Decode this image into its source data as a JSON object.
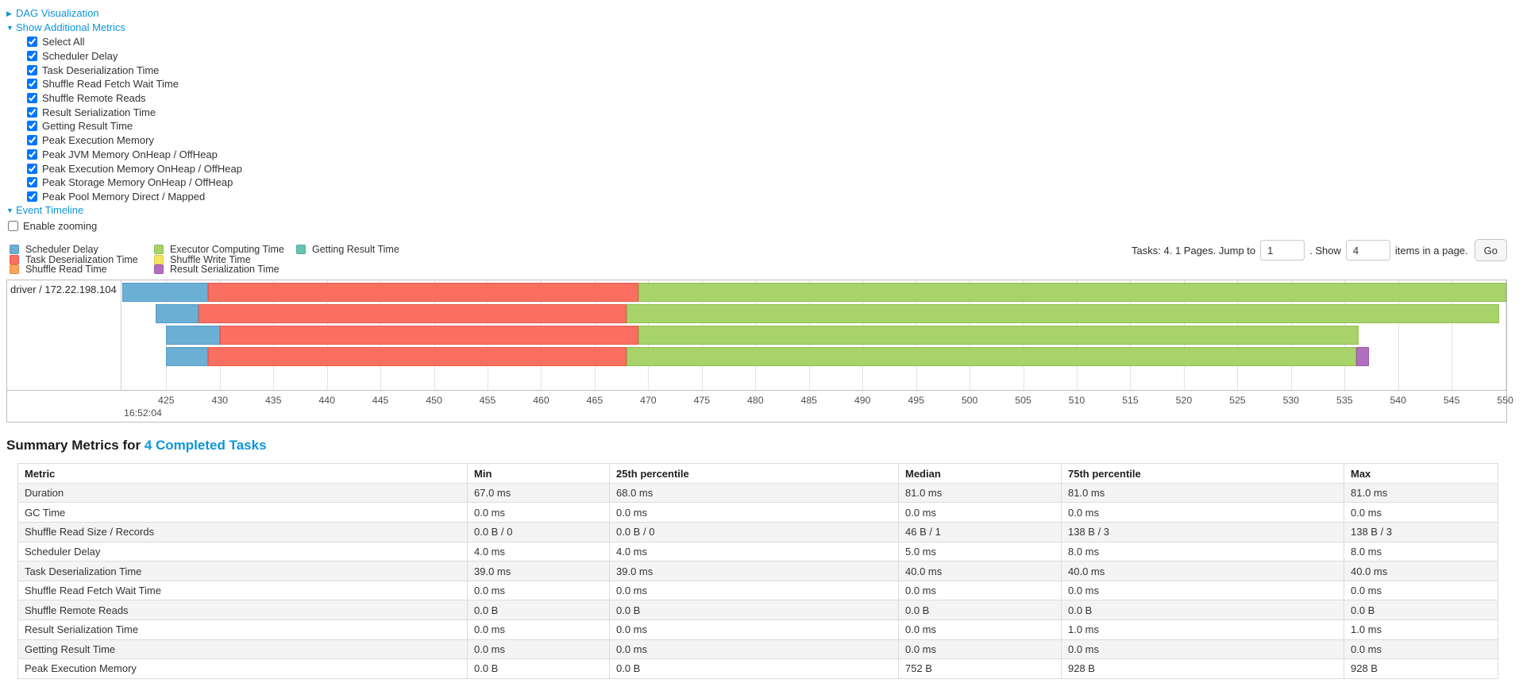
{
  "colors": {
    "link": "#0e95da",
    "scheduler_delay": {
      "fill": "#6CAFD4",
      "border": "#559BC4"
    },
    "task_deserialization": {
      "fill": "#FB6F61",
      "border": "#E85A4E"
    },
    "shuffle_read": {
      "fill": "#F9A65C",
      "border": "#E08C42"
    },
    "executor_computing": {
      "fill": "#A7D36A",
      "border": "#8FBE50"
    },
    "shuffle_write": {
      "fill": "#F3E55F",
      "border": "#D9CB48"
    },
    "result_serialization": {
      "fill": "#B26FC0",
      "border": "#9858A8"
    },
    "getting_result": {
      "fill": "#67C4B2",
      "border": "#4FAD9A"
    }
  },
  "toggles": {
    "dag": {
      "label": "DAG Visualization",
      "arrow": "▶"
    },
    "metrics": {
      "label": "Show Additional Metrics",
      "arrow": "▼"
    },
    "timeline": {
      "label": "Event Timeline",
      "arrow": "▼"
    }
  },
  "metrics_panel": {
    "items": [
      {
        "label": "Select All",
        "checked": true
      },
      {
        "label": "Scheduler Delay",
        "checked": true
      },
      {
        "label": "Task Deserialization Time",
        "checked": true
      },
      {
        "label": "Shuffle Read Fetch Wait Time",
        "checked": true
      },
      {
        "label": "Shuffle Remote Reads",
        "checked": true
      },
      {
        "label": "Result Serialization Time",
        "checked": true
      },
      {
        "label": "Getting Result Time",
        "checked": true
      },
      {
        "label": "Peak Execution Memory",
        "checked": true
      },
      {
        "label": "Peak JVM Memory OnHeap / OffHeap",
        "checked": true
      },
      {
        "label": "Peak Execution Memory OnHeap / OffHeap",
        "checked": true
      },
      {
        "label": "Peak Storage Memory OnHeap / OffHeap",
        "checked": true
      },
      {
        "label": "Peak Pool Memory Direct / Mapped",
        "checked": true
      }
    ]
  },
  "enable_zooming": {
    "label": "Enable zooming",
    "checked": false
  },
  "legend": {
    "columns": [
      [
        {
          "label": "Scheduler Delay",
          "color_key": "scheduler_delay"
        },
        {
          "label": "Task Deserialization Time",
          "color_key": "task_deserialization"
        },
        {
          "label": "Shuffle Read Time",
          "color_key": "shuffle_read"
        }
      ],
      [
        {
          "label": "Executor Computing Time",
          "color_key": "executor_computing"
        },
        {
          "label": "Shuffle Write Time",
          "color_key": "shuffle_write"
        },
        {
          "label": "Result Serialization Time",
          "color_key": "result_serialization"
        }
      ],
      [
        {
          "label": "Getting Result Time",
          "color_key": "getting_result"
        }
      ]
    ]
  },
  "pagination": {
    "tasks_text": "Tasks: 4. 1 Pages. Jump to",
    "jump_value": "1",
    "show_text": ". Show",
    "show_value": "4",
    "items_text": "items in a page.",
    "go_label": "Go"
  },
  "chart_data": {
    "type": "bar",
    "subtype": "task-timeline-gantt",
    "group_label": "driver / 172.22.198.104",
    "axis": {
      "unit": "ms within second 16:52:04",
      "domain": [
        420.9,
        550.1
      ],
      "tick_values": [
        425,
        430,
        435,
        440,
        445,
        450,
        455,
        460,
        465,
        470,
        475,
        480,
        485,
        490,
        495,
        500,
        505,
        510,
        515,
        520,
        525,
        530,
        535,
        540,
        545,
        550
      ],
      "start_time_label": "16:52:04",
      "grid": true
    },
    "tasks": [
      {
        "segments": [
          {
            "name": "Scheduler Delay",
            "color_key": "scheduler_delay",
            "start": 420.9,
            "end": 428.9
          },
          {
            "name": "Task Deserialization Time",
            "color_key": "task_deserialization",
            "start": 428.9,
            "end": 469.1
          },
          {
            "name": "Executor Computing Time",
            "color_key": "executor_computing",
            "start": 469.1,
            "end": 550.1
          }
        ]
      },
      {
        "segments": [
          {
            "name": "Scheduler Delay",
            "color_key": "scheduler_delay",
            "start": 424.0,
            "end": 428.0
          },
          {
            "name": "Task Deserialization Time",
            "color_key": "task_deserialization",
            "start": 428.0,
            "end": 468.0
          },
          {
            "name": "Executor Computing Time",
            "color_key": "executor_computing",
            "start": 468.0,
            "end": 549.4
          }
        ]
      },
      {
        "segments": [
          {
            "name": "Scheduler Delay",
            "color_key": "scheduler_delay",
            "start": 425.0,
            "end": 430.0
          },
          {
            "name": "Task Deserialization Time",
            "color_key": "task_deserialization",
            "start": 430.0,
            "end": 469.1
          },
          {
            "name": "Executor Computing Time",
            "color_key": "executor_computing",
            "start": 469.1,
            "end": 536.3
          }
        ]
      },
      {
        "segments": [
          {
            "name": "Scheduler Delay",
            "color_key": "scheduler_delay",
            "start": 425.0,
            "end": 428.9
          },
          {
            "name": "Task Deserialization Time",
            "color_key": "task_deserialization",
            "start": 428.9,
            "end": 468.0
          },
          {
            "name": "Executor Computing Time",
            "color_key": "executor_computing",
            "start": 468.0,
            "end": 536.1
          },
          {
            "name": "Result Serialization Time",
            "color_key": "result_serialization",
            "start": 536.1,
            "end": 537.3
          }
        ]
      }
    ]
  },
  "summary": {
    "title_prefix": "Summary Metrics for ",
    "title_link": "4 Completed Tasks",
    "table": {
      "headers": [
        "Metric",
        "Min",
        "25th percentile",
        "Median",
        "75th percentile",
        "Max"
      ],
      "rows": [
        {
          "metric": "Duration",
          "values": [
            "67.0 ms",
            "68.0 ms",
            "81.0 ms",
            "81.0 ms",
            "81.0 ms"
          ]
        },
        {
          "metric": "GC Time",
          "values": [
            "0.0 ms",
            "0.0 ms",
            "0.0 ms",
            "0.0 ms",
            "0.0 ms"
          ]
        },
        {
          "metric": "Shuffle Read Size / Records",
          "values": [
            "0.0 B / 0",
            "0.0 B / 0",
            "46 B / 1",
            "138 B / 3",
            "138 B / 3"
          ]
        },
        {
          "metric": "Scheduler Delay",
          "values": [
            "4.0 ms",
            "4.0 ms",
            "5.0 ms",
            "8.0 ms",
            "8.0 ms"
          ]
        },
        {
          "metric": "Task Deserialization Time",
          "values": [
            "39.0 ms",
            "39.0 ms",
            "40.0 ms",
            "40.0 ms",
            "40.0 ms"
          ]
        },
        {
          "metric": "Shuffle Read Fetch Wait Time",
          "values": [
            "0.0 ms",
            "0.0 ms",
            "0.0 ms",
            "0.0 ms",
            "0.0 ms"
          ]
        },
        {
          "metric": "Shuffle Remote Reads",
          "values": [
            "0.0 B",
            "0.0 B",
            "0.0 B",
            "0.0 B",
            "0.0 B"
          ]
        },
        {
          "metric": "Result Serialization Time",
          "values": [
            "0.0 ms",
            "0.0 ms",
            "0.0 ms",
            "1.0 ms",
            "1.0 ms"
          ]
        },
        {
          "metric": "Getting Result Time",
          "values": [
            "0.0 ms",
            "0.0 ms",
            "0.0 ms",
            "0.0 ms",
            "0.0 ms"
          ]
        },
        {
          "metric": "Peak Execution Memory",
          "values": [
            "0.0 B",
            "0.0 B",
            "752 B",
            "928 B",
            "928 B"
          ]
        }
      ]
    }
  }
}
